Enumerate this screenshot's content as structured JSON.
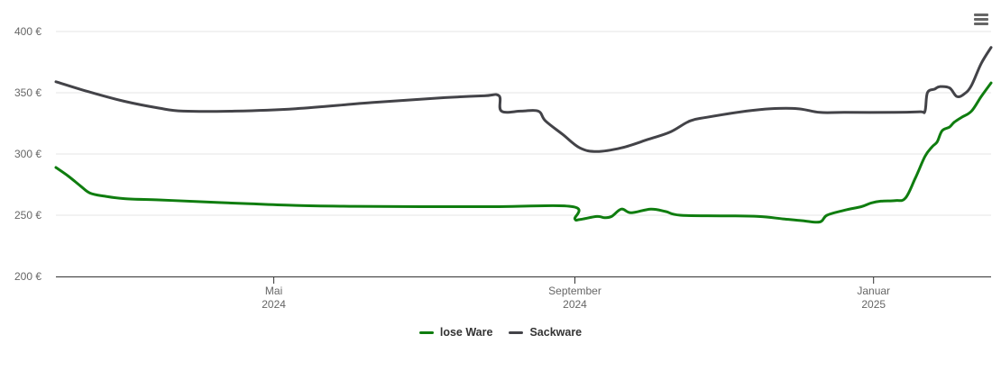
{
  "chart_data": {
    "type": "line",
    "currency": "€",
    "y_ticks": [
      200,
      250,
      300,
      350,
      400
    ],
    "y_tick_labels": [
      "200 €",
      "250 €",
      "300 €",
      "350 €",
      "400 €"
    ],
    "ylim": [
      200,
      400
    ],
    "xlim": [
      "2024-02-02",
      "2025-02-18"
    ],
    "x_ticks": [
      {
        "date": "2024-05-01",
        "month": "Mai",
        "year": "2024"
      },
      {
        "date": "2024-09-01",
        "month": "September",
        "year": "2024"
      },
      {
        "date": "2025-01-01",
        "month": "Januar",
        "year": "2025"
      }
    ],
    "grid": true,
    "legend_position": "bottom-center",
    "series": [
      {
        "name": "lose Ware",
        "color": "#0f7d0f",
        "points": [
          [
            "2024-02-02",
            289
          ],
          [
            "2024-02-07",
            282
          ],
          [
            "2024-02-12",
            274
          ],
          [
            "2024-02-16",
            268
          ],
          [
            "2024-02-22",
            265.5
          ],
          [
            "2024-03-01",
            263.5
          ],
          [
            "2024-03-15",
            262.5
          ],
          [
            "2024-04-01",
            261
          ],
          [
            "2024-04-20",
            259.5
          ],
          [
            "2024-05-10",
            258
          ],
          [
            "2024-06-01",
            257.3
          ],
          [
            "2024-06-30",
            257
          ],
          [
            "2024-07-31",
            257
          ],
          [
            "2024-08-31",
            257
          ],
          [
            "2024-09-01",
            247
          ],
          [
            "2024-09-03",
            246.5
          ],
          [
            "2024-09-10",
            249
          ],
          [
            "2024-09-13",
            248
          ],
          [
            "2024-09-16",
            249
          ],
          [
            "2024-09-20",
            255
          ],
          [
            "2024-09-24",
            252
          ],
          [
            "2024-10-02",
            255
          ],
          [
            "2024-10-08",
            253
          ],
          [
            "2024-10-14",
            250
          ],
          [
            "2024-11-01",
            249.5
          ],
          [
            "2024-11-15",
            249
          ],
          [
            "2024-11-25",
            247
          ],
          [
            "2024-12-03",
            245.5
          ],
          [
            "2024-12-10",
            244.5
          ],
          [
            "2024-12-13",
            250
          ],
          [
            "2024-12-20",
            254
          ],
          [
            "2024-12-27",
            257
          ],
          [
            "2024-12-31",
            260
          ],
          [
            "2025-01-04",
            261.5
          ],
          [
            "2025-01-10",
            262
          ],
          [
            "2025-01-14",
            264
          ],
          [
            "2025-01-18",
            280
          ],
          [
            "2025-01-22",
            298
          ],
          [
            "2025-01-25",
            306
          ],
          [
            "2025-01-27",
            310
          ],
          [
            "2025-01-29",
            319
          ],
          [
            "2025-02-01",
            322
          ],
          [
            "2025-02-03",
            326
          ],
          [
            "2025-02-06",
            330
          ],
          [
            "2025-02-10",
            335
          ],
          [
            "2025-02-14",
            347
          ],
          [
            "2025-02-18",
            358
          ]
        ]
      },
      {
        "name": "Sackware",
        "color": "#434348",
        "points": [
          [
            "2024-02-02",
            359
          ],
          [
            "2024-02-15",
            351
          ],
          [
            "2024-03-01",
            343
          ],
          [
            "2024-03-15",
            337.5
          ],
          [
            "2024-03-25",
            335
          ],
          [
            "2024-04-15",
            335
          ],
          [
            "2024-05-10",
            337
          ],
          [
            "2024-06-10",
            342
          ],
          [
            "2024-07-10",
            346
          ],
          [
            "2024-07-26",
            347.5
          ],
          [
            "2024-08-01",
            347.5
          ],
          [
            "2024-08-02",
            335
          ],
          [
            "2024-08-10",
            335
          ],
          [
            "2024-08-17",
            335
          ],
          [
            "2024-08-20",
            327
          ],
          [
            "2024-08-27",
            316
          ],
          [
            "2024-09-03",
            305
          ],
          [
            "2024-09-10",
            302
          ],
          [
            "2024-09-20",
            305
          ],
          [
            "2024-10-01",
            312
          ],
          [
            "2024-10-10",
            318
          ],
          [
            "2024-10-18",
            327
          ],
          [
            "2024-10-25",
            330
          ],
          [
            "2024-11-10",
            335
          ],
          [
            "2024-11-20",
            337
          ],
          [
            "2024-12-01",
            337
          ],
          [
            "2024-12-10",
            334
          ],
          [
            "2024-12-20",
            334
          ],
          [
            "2025-01-10",
            334
          ],
          [
            "2025-01-20",
            334.5
          ],
          [
            "2025-01-22",
            335
          ],
          [
            "2025-01-23",
            350
          ],
          [
            "2025-01-26",
            353
          ],
          [
            "2025-01-28",
            355
          ],
          [
            "2025-02-01",
            354
          ],
          [
            "2025-02-04",
            347
          ],
          [
            "2025-02-07",
            349
          ],
          [
            "2025-02-10",
            356
          ],
          [
            "2025-02-14",
            374
          ],
          [
            "2025-02-18",
            387
          ]
        ]
      }
    ]
  },
  "menu": {
    "icon": "hamburger-menu-icon"
  }
}
